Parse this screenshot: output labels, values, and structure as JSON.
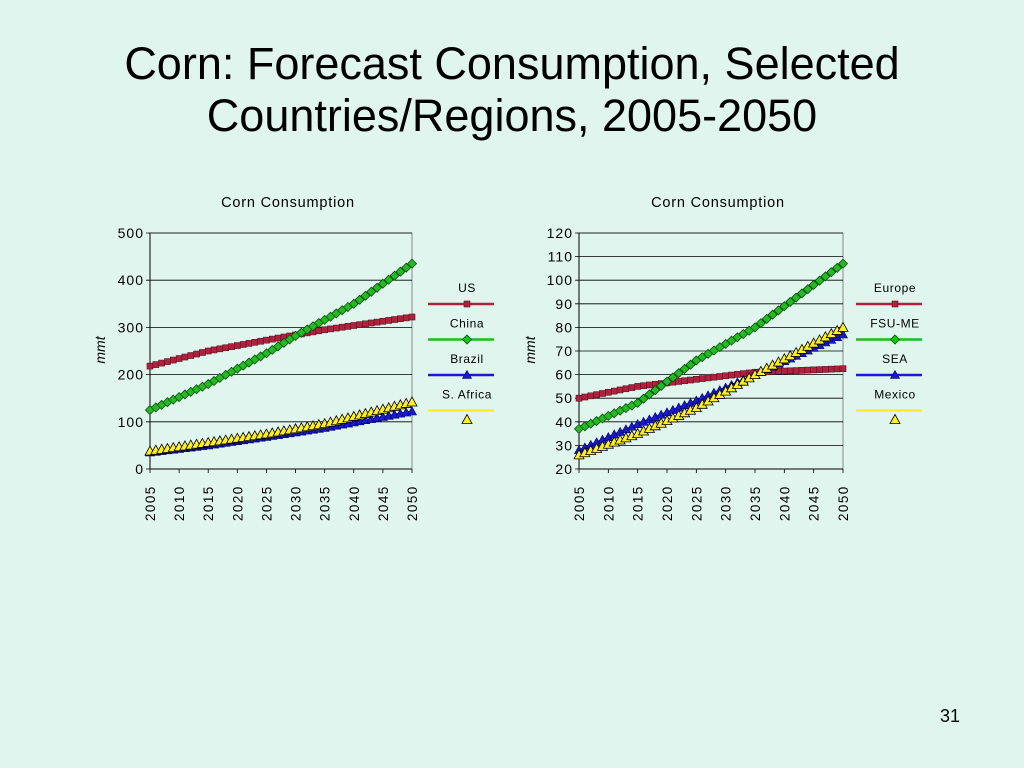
{
  "slide": {
    "title_line1": "Corn:  Forecast Consumption, Selected",
    "title_line2": "Countries/Regions, 2005-2050",
    "page_number": "31"
  },
  "chart_data": [
    {
      "type": "line",
      "title": "Corn Consumption",
      "ylabel": "mmt",
      "xlabel": "",
      "x": [
        2005,
        2050
      ],
      "x_ticks": [
        "2005",
        "2010",
        "2015",
        "2020",
        "2025",
        "2030",
        "2035",
        "2040",
        "2045",
        "2050"
      ],
      "ylim": [
        0,
        500
      ],
      "y_ticks": [
        0,
        100,
        200,
        300,
        400,
        500
      ],
      "grid": "horizontal",
      "legend_position": "right",
      "series": [
        {
          "name": "US",
          "color": "#b0213e",
          "marker": "square",
          "points": [
            [
              2005,
              218
            ],
            [
              2015,
              250
            ],
            [
              2025,
              273
            ],
            [
              2035,
              295
            ],
            [
              2050,
              322
            ]
          ]
        },
        {
          "name": "China",
          "color": "#22bb22",
          "marker": "diamond",
          "points": [
            [
              2005,
              125
            ],
            [
              2015,
              180
            ],
            [
              2025,
              245
            ],
            [
              2030,
              282
            ],
            [
              2040,
              350
            ],
            [
              2050,
              435
            ]
          ]
        },
        {
          "name": "Brazil",
          "color": "#1a1acc",
          "marker": "triangle",
          "points": [
            [
              2005,
              35
            ],
            [
              2015,
              50
            ],
            [
              2025,
              68
            ],
            [
              2035,
              87
            ],
            [
              2050,
              122
            ]
          ]
        },
        {
          "name": "S. Africa",
          "color": "#ffee22",
          "marker": "triangle-open",
          "points": [
            [
              2005,
              38
            ],
            [
              2015,
              56
            ],
            [
              2025,
              74
            ],
            [
              2035,
              96
            ],
            [
              2050,
              142
            ]
          ]
        }
      ]
    },
    {
      "type": "line",
      "title": "Corn Consumption",
      "ylabel": "mmt",
      "xlabel": "",
      "x": [
        2005,
        2050
      ],
      "x_ticks": [
        "2005",
        "2010",
        "2015",
        "2020",
        "2025",
        "2030",
        "2035",
        "2040",
        "2045",
        "2050"
      ],
      "ylim": [
        20,
        120
      ],
      "y_ticks": [
        20,
        30,
        40,
        50,
        60,
        70,
        80,
        90,
        100,
        110,
        120
      ],
      "grid": "horizontal",
      "legend_position": "right",
      "series": [
        {
          "name": "Europe",
          "color": "#b0213e",
          "marker": "square",
          "points": [
            [
              2005,
              50
            ],
            [
              2015,
              55
            ],
            [
              2025,
              58
            ],
            [
              2035,
              61
            ],
            [
              2050,
              62.5
            ]
          ]
        },
        {
          "name": "FSU-ME",
          "color": "#22bb22",
          "marker": "diamond",
          "points": [
            [
              2005,
              37
            ],
            [
              2015,
              48
            ],
            [
              2025,
              66
            ],
            [
              2035,
              80
            ],
            [
              2050,
              107
            ]
          ]
        },
        {
          "name": "SEA",
          "color": "#1a1acc",
          "marker": "triangle",
          "points": [
            [
              2005,
              28
            ],
            [
              2015,
              39
            ],
            [
              2025,
              49
            ],
            [
              2035,
              60
            ],
            [
              2050,
              77
            ]
          ]
        },
        {
          "name": "Mexico",
          "color": "#ffee22",
          "marker": "triangle-open",
          "points": [
            [
              2005,
              26
            ],
            [
              2015,
              35
            ],
            [
              2025,
              46
            ],
            [
              2035,
              60
            ],
            [
              2050,
              80
            ]
          ]
        }
      ]
    }
  ]
}
